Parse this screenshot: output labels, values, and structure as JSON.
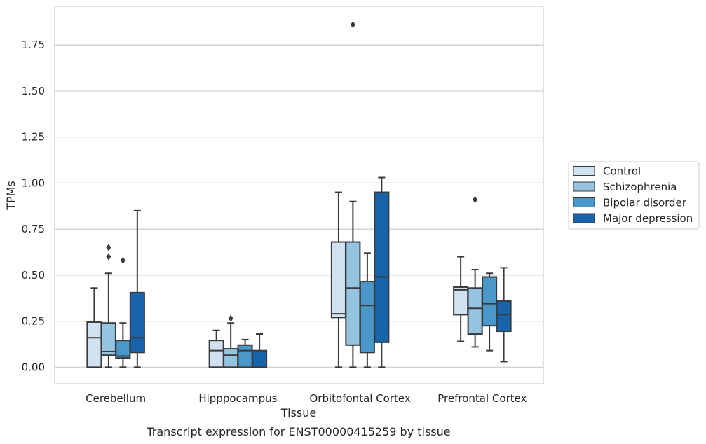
{
  "chart_data": {
    "type": "box",
    "caption": "Transcript expression for ENST00000415259 by tissue",
    "xlabel": "Tissue",
    "ylabel": "TPMs",
    "ylim": [
      -0.09,
      1.96
    ],
    "yticks": [
      0.0,
      0.25,
      0.5,
      0.75,
      1.0,
      1.25,
      1.5,
      1.75
    ],
    "ytick_labels": [
      "0.00",
      "0.25",
      "0.50",
      "0.75",
      "1.00",
      "1.25",
      "1.50",
      "1.75"
    ],
    "grid": "horizontal",
    "legend_position": "right",
    "categories": [
      "Cerebellum",
      "Hipppocampus",
      "Orbitofontal Cortex",
      "Prefrontal Cortex"
    ],
    "series": [
      {
        "name": "Control",
        "color": "#d0e1f2",
        "boxes": [
          {
            "whislo": 0.0,
            "q1": 0.0,
            "med": 0.16,
            "q3": 0.245,
            "whishi": 0.43,
            "fliers": []
          },
          {
            "whislo": 0.0,
            "q1": 0.0,
            "med": 0.09,
            "q3": 0.145,
            "whishi": 0.2,
            "fliers": []
          },
          {
            "whislo": 0.0,
            "q1": 0.27,
            "med": 0.29,
            "q3": 0.68,
            "whishi": 0.95,
            "fliers": []
          },
          {
            "whislo": 0.14,
            "q1": 0.285,
            "med": 0.42,
            "q3": 0.435,
            "whishi": 0.6,
            "fliers": []
          }
        ]
      },
      {
        "name": "Schizophrenia",
        "color": "#94c4df",
        "boxes": [
          {
            "whislo": 0.0,
            "q1": 0.065,
            "med": 0.085,
            "q3": 0.24,
            "whishi": 0.51,
            "fliers": [
              0.6,
              0.65
            ]
          },
          {
            "whislo": 0.0,
            "q1": 0.0,
            "med": 0.065,
            "q3": 0.1,
            "whishi": 0.24,
            "fliers": [
              0.265
            ]
          },
          {
            "whislo": 0.0,
            "q1": 0.12,
            "med": 0.43,
            "q3": 0.68,
            "whishi": 0.9,
            "fliers": [
              1.86
            ]
          },
          {
            "whislo": 0.11,
            "q1": 0.18,
            "med": 0.32,
            "q3": 0.43,
            "whishi": 0.53,
            "fliers": [
              0.91
            ]
          }
        ]
      },
      {
        "name": "Bipolar disorder",
        "color": "#4a98c9",
        "boxes": [
          {
            "whislo": 0.0,
            "q1": 0.05,
            "med": 0.06,
            "q3": 0.145,
            "whishi": 0.24,
            "fliers": [
              0.58
            ]
          },
          {
            "whislo": 0.0,
            "q1": 0.0,
            "med": 0.09,
            "q3": 0.12,
            "whishi": 0.15,
            "fliers": []
          },
          {
            "whislo": 0.0,
            "q1": 0.08,
            "med": 0.335,
            "q3": 0.465,
            "whishi": 0.62,
            "fliers": []
          },
          {
            "whislo": 0.09,
            "q1": 0.225,
            "med": 0.345,
            "q3": 0.49,
            "whishi": 0.51,
            "fliers": []
          }
        ]
      },
      {
        "name": "Major depression",
        "color": "#1764ab",
        "boxes": [
          {
            "whislo": 0.0,
            "q1": 0.08,
            "med": 0.16,
            "q3": 0.405,
            "whishi": 0.85,
            "fliers": []
          },
          {
            "whislo": 0.0,
            "q1": 0.0,
            "med": 0.0,
            "q3": 0.09,
            "whishi": 0.18,
            "fliers": []
          },
          {
            "whislo": 0.0,
            "q1": 0.135,
            "med": 0.49,
            "q3": 0.95,
            "whishi": 1.03,
            "fliers": []
          },
          {
            "whislo": 0.03,
            "q1": 0.195,
            "med": 0.285,
            "q3": 0.36,
            "whishi": 0.54,
            "fliers": []
          }
        ]
      }
    ]
  }
}
